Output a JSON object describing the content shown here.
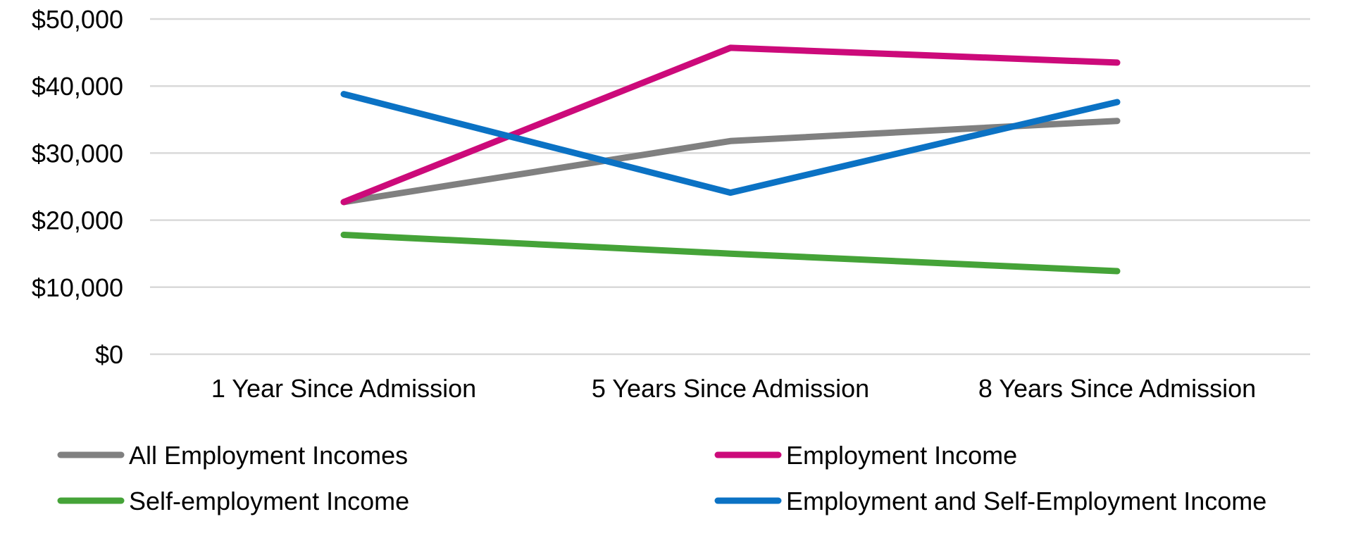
{
  "chart_data": {
    "type": "line",
    "categories": [
      "1 Year Since Admission",
      "5 Years Since Admission",
      "8 Years Since Admission"
    ],
    "y_ticks": [
      "$0",
      "$10,000",
      "$20,000",
      "$30,000",
      "$40,000",
      "$50,000"
    ],
    "ylim": [
      0,
      50000
    ],
    "grid": true,
    "legend_position": "bottom",
    "series": [
      {
        "name": "All Employment Incomes",
        "color": "#808080",
        "values": [
          22700,
          31800,
          34800
        ]
      },
      {
        "name": "Employment Income",
        "color": "#cc0a7a",
        "values": [
          22700,
          45700,
          43500
        ]
      },
      {
        "name": "Self-employment Income",
        "color": "#45a338",
        "values": [
          17800,
          15000,
          12400
        ]
      },
      {
        "name": "Employment and Self-Employment Income",
        "color": "#0b72c4",
        "values": [
          38800,
          24100,
          37600
        ]
      }
    ]
  }
}
